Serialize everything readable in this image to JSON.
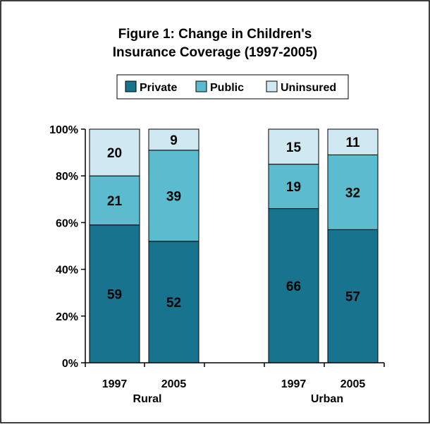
{
  "chart_data": {
    "type": "bar",
    "stacked": true,
    "title_lines": [
      "Figure 1: Change in Children's",
      "Insurance Coverage (1997-2005)"
    ],
    "xlabel": "",
    "ylabel": "",
    "ylim": [
      0,
      100
    ],
    "y_ticks": [
      "0%",
      "20%",
      "40%",
      "60%",
      "80%",
      "100%"
    ],
    "groups": [
      "Rural",
      "Urban"
    ],
    "categories": [
      "1997",
      "2005",
      "1997",
      "2005"
    ],
    "category_group": [
      0,
      0,
      1,
      1
    ],
    "legend_position": "top",
    "grid": false,
    "series": [
      {
        "name": "Private",
        "color": "#17738e",
        "values": [
          59,
          52,
          66,
          57
        ]
      },
      {
        "name": "Public",
        "color": "#5bbccf",
        "values": [
          21,
          39,
          19,
          32
        ]
      },
      {
        "name": "Uninsured",
        "color": "#cfe8f1",
        "values": [
          20,
          9,
          15,
          11
        ]
      }
    ]
  }
}
